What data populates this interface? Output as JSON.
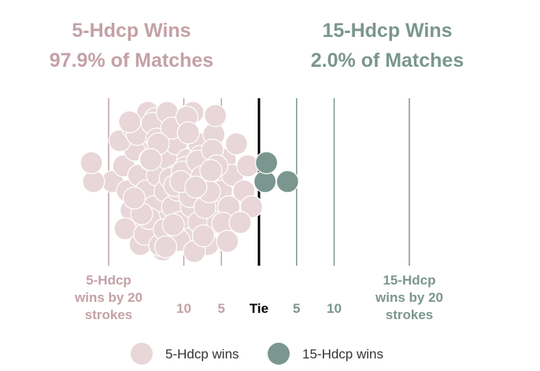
{
  "headlines": {
    "left": {
      "title": "5-Hdcp Wins",
      "share": "97.9% of Matches"
    },
    "right": {
      "title": "15-Hdcp Wins",
      "share": "2.0% of Matches"
    }
  },
  "colors": {
    "five_hdcp": "#e8d6d8",
    "five_hdcp_text": "#c4a1a7",
    "fifteen_hdcp": "#7b968f",
    "fifteen_hdcp_text": "#7b968f",
    "tie_line": "#000000",
    "grid_five": "#c4a1a7",
    "grid_fifteen": "#7b968f"
  },
  "chart_data": {
    "type": "scatter",
    "x_axis": {
      "ticks": [
        {
          "value": -20,
          "label": "5-Hdcp\nwins by 20\nstrokes",
          "side": "five"
        },
        {
          "value": -10,
          "label": "10",
          "side": "five"
        },
        {
          "value": -5,
          "label": "5",
          "side": "five"
        },
        {
          "value": 0,
          "label": "Tie",
          "side": "tie"
        },
        {
          "value": 5,
          "label": "5",
          "side": "fifteen"
        },
        {
          "value": 10,
          "label": "10",
          "side": "fifteen"
        },
        {
          "value": 20,
          "label": "15-Hdcp\nwins by 20\nstrokes",
          "side": "fifteen"
        }
      ],
      "range": [
        -23,
        23
      ]
    },
    "legend": {
      "placement": "bottom",
      "entries": [
        {
          "name": "5-Hdcp wins",
          "key": "five"
        },
        {
          "name": "15-Hdcp wins",
          "key": "fifteen"
        }
      ]
    },
    "series": [
      {
        "name": "5-Hdcp wins",
        "key": "five",
        "points": [
          -19.5,
          -22,
          -22.3,
          -18,
          -17.5,
          -17,
          -16.5,
          -16,
          -15.5,
          -15,
          -14.5,
          -14,
          -14,
          -13.5,
          -13,
          -13,
          -12.5,
          -12,
          -12,
          -11.5,
          -11,
          -11,
          -10.5,
          -10,
          -10,
          -9.5,
          -9,
          -9,
          -8.5,
          -8,
          -8,
          -7.5,
          -7,
          -6.5,
          -6,
          -6,
          -5.5,
          -5,
          -4.5,
          -4,
          -3.5,
          -3,
          -2,
          -1.5,
          -1,
          -18.5,
          -17.8,
          -16.8,
          -15.8,
          -14.8,
          -13.8,
          -12.8,
          -11.8,
          -10.8,
          -9.8,
          -8.8,
          -7.8,
          -6.8,
          -5.8,
          -4.8,
          -16.2,
          -15.2,
          -14.2,
          -13.2,
          -12.2,
          -11.2,
          -10.2,
          -9.2,
          -8.2,
          -7.2,
          -6.2,
          -14.6,
          -13.6,
          -12.6,
          -11.6,
          -10.6,
          -9.6,
          -8.6,
          -7.6,
          -6.6,
          -5.6,
          -4.2,
          -2.5,
          -15.6,
          -13.4,
          -11.4,
          -9.4,
          -7.4,
          -17.2,
          -12.4,
          -10.4,
          -8.4,
          -6.4,
          -16.6,
          -14.4
        ]
      },
      {
        "name": "15-Hdcp wins",
        "key": "fifteen",
        "points": [
          0.8,
          1.0,
          3.8
        ]
      }
    ]
  }
}
